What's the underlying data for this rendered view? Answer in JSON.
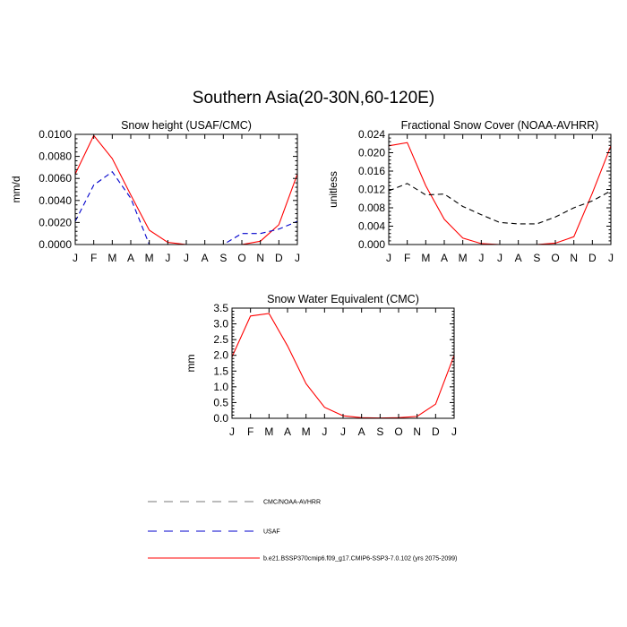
{
  "title": "Southern Asia(20-30N,60-120E)",
  "colors": {
    "model": "#ff0000",
    "usaf": "#0000cc",
    "cmc": "#000000",
    "legend_gray": "#777777"
  },
  "legend": {
    "items": [
      {
        "label": "CMC/NOAA-AVHRR",
        "color": "#777777",
        "dash": "dashed"
      },
      {
        "label": "USAF",
        "color": "#0000cc",
        "dash": "dashed"
      },
      {
        "label": "b.e21.BSSP370cmip6.f09_g17.CMIP6-SSP3-7.0.102 (yrs 2075-2099)",
        "color": "#ff0000",
        "dash": "solid"
      }
    ]
  },
  "chart_data": [
    {
      "type": "line",
      "title": "Snow height (USAF/CMC)",
      "ylabel": "mm/d",
      "xlabel": "",
      "categories": [
        "J",
        "F",
        "M",
        "A",
        "M",
        "J",
        "J",
        "A",
        "S",
        "O",
        "N",
        "D",
        "J"
      ],
      "ylim": [
        0,
        0.01
      ],
      "yticks": [
        0,
        0.002,
        0.004,
        0.006,
        0.008,
        0.01
      ],
      "ytick_labels": [
        "0.0000",
        "0.0020",
        "0.0040",
        "0.0060",
        "0.0080",
        "0.0100"
      ],
      "grid": false,
      "series": [
        {
          "values": [
            0.0064,
            0.0099,
            0.0078,
            0.0045,
            0.0013,
            0.0002,
            0.0,
            0.0,
            0.0,
            0.0,
            0.0003,
            0.0018,
            0.0064
          ],
          "color": "#ff0000",
          "dash": "solid"
        },
        {
          "values": [
            0.0021,
            0.0054,
            0.0066,
            0.0042,
            0.0,
            0.0,
            0.0,
            0.0,
            0.0,
            0.001,
            0.001,
            0.0014,
            0.0021
          ],
          "color": "#0000cc",
          "dash": "dashed"
        }
      ]
    },
    {
      "type": "line",
      "title": "Fractional Snow Cover (NOAA-AVHRR)",
      "ylabel": "unitless",
      "xlabel": "",
      "categories": [
        "J",
        "F",
        "M",
        "A",
        "M",
        "J",
        "J",
        "A",
        "S",
        "O",
        "N",
        "D",
        "J"
      ],
      "ylim": [
        0,
        0.024
      ],
      "yticks": [
        0,
        0.004,
        0.008,
        0.012,
        0.016,
        0.02,
        0.024
      ],
      "ytick_labels": [
        "0.000",
        "0.004",
        "0.008",
        "0.012",
        "0.016",
        "0.020",
        "0.024"
      ],
      "grid": false,
      "series": [
        {
          "values": [
            0.0215,
            0.0222,
            0.0128,
            0.0055,
            0.0014,
            0.0002,
            0.0,
            0.0,
            0.0,
            0.0003,
            0.0017,
            0.0112,
            0.0215
          ],
          "color": "#ff0000",
          "dash": "solid"
        },
        {
          "values": [
            0.0117,
            0.0133,
            0.0108,
            0.011,
            0.0083,
            0.0065,
            0.0048,
            0.0045,
            0.0045,
            0.006,
            0.008,
            0.0095,
            0.0117
          ],
          "color": "#000000",
          "dash": "dashed"
        }
      ]
    },
    {
      "type": "line",
      "title": "Snow Water Equivalent (CMC)",
      "ylabel": "mm",
      "xlabel": "",
      "categories": [
        "J",
        "F",
        "M",
        "A",
        "M",
        "J",
        "J",
        "A",
        "S",
        "O",
        "N",
        "D",
        "J"
      ],
      "ylim": [
        0,
        3.5
      ],
      "yticks": [
        0,
        0.5,
        1,
        1.5,
        2,
        2.5,
        3,
        3.5
      ],
      "ytick_labels": [
        "0.0",
        "0.5",
        "1.0",
        "1.5",
        "2.0",
        "2.5",
        "3.0",
        "3.5"
      ],
      "grid": false,
      "series": [
        {
          "values": [
            1.95,
            3.25,
            3.33,
            2.3,
            1.1,
            0.35,
            0.08,
            0.02,
            0.01,
            0.02,
            0.06,
            0.45,
            2.0
          ],
          "color": "#ff0000",
          "dash": "solid"
        }
      ]
    }
  ]
}
